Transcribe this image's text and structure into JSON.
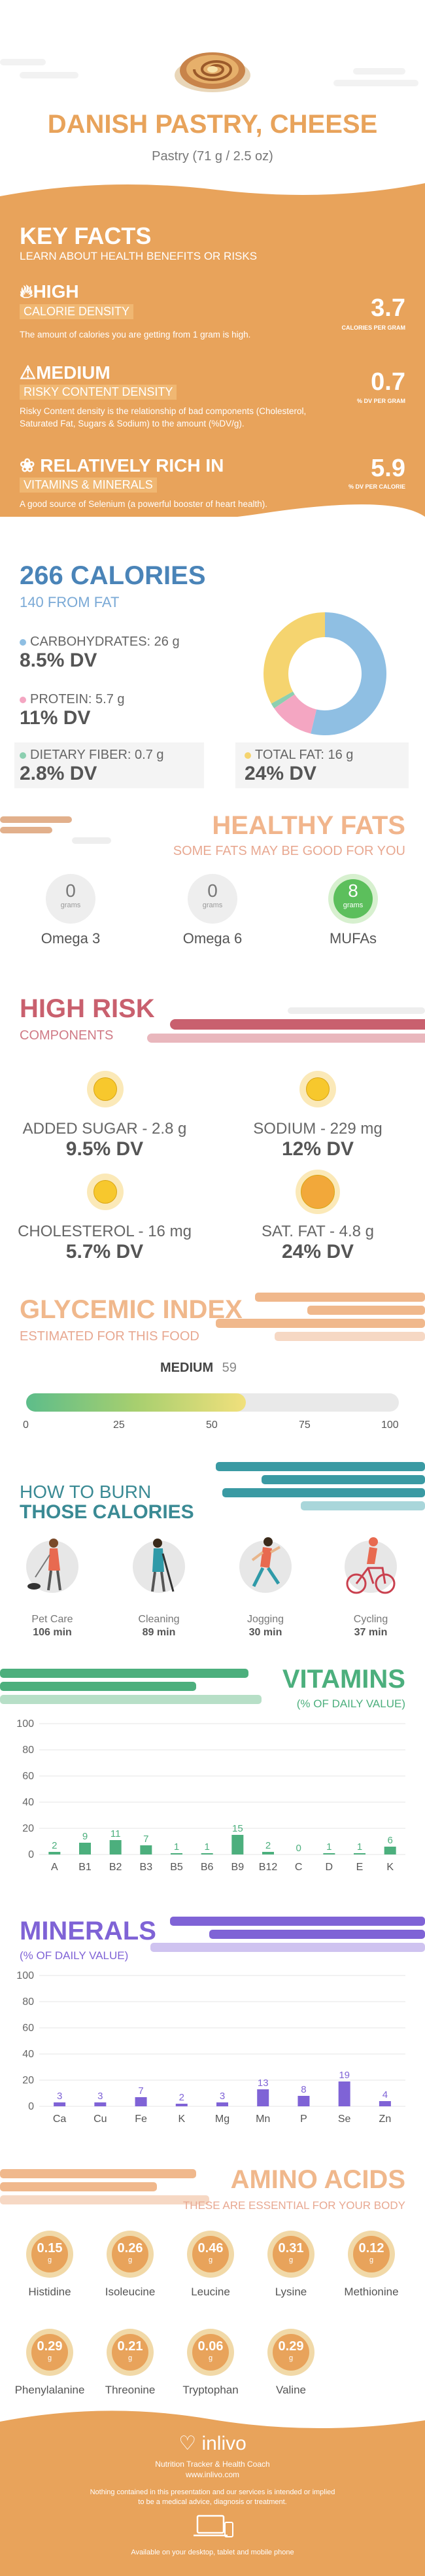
{
  "header": {
    "title": "DANISH PASTRY, CHEESE",
    "serving": "Pastry (71 g / 2.5 oz)"
  },
  "key_facts": {
    "title": "KEY FACTS",
    "subtitle": "LEARN ABOUT HEALTH BENEFITS OR RISKS",
    "items": [
      {
        "level": "HIGH",
        "label": "CALORIE DENSITY",
        "desc": "The amount of calories you are getting from 1 gram is high.",
        "value": "3.7",
        "unit": "CALORIES PER GRAM"
      },
      {
        "level": "MEDIUM",
        "label": "RISKY CONTENT DENSITY",
        "desc": "Risky Content density is the relationship of bad components (Cholesterol, Saturated Fat, Sugars & Sodium) to the amount (%DV/g).",
        "value": "0.7",
        "unit": "% DV PER GRAM"
      },
      {
        "level": "RELATIVELY RICH IN",
        "label": "VITAMINS & MINERALS",
        "desc": "A good source of Selenium (a powerful booster of heart health).",
        "value": "5.9",
        "unit": "% DV PER CALORIE"
      }
    ]
  },
  "calories": {
    "title": "266 CALORIES",
    "subtitle": "140 FROM FAT",
    "carbs": {
      "label": "CARBOHYDRATES: 26 g",
      "dv": "8.5% DV",
      "color": "#8fbfe3"
    },
    "protein": {
      "label": "PROTEIN: 5.7 g",
      "dv": "11% DV",
      "color": "#f4a6c2"
    },
    "fiber": {
      "label": "DIETARY FIBER: 0.7 g",
      "dv": "2.8% DV",
      "color": "#8ccfb0"
    },
    "fat": {
      "label": "TOTAL FAT: 16 g",
      "dv": "24% DV",
      "color": "#f5d46f"
    },
    "donut": [
      {
        "name": "Carbohydrates",
        "value": 26,
        "color": "#8fbfe3"
      },
      {
        "name": "Protein",
        "value": 5.7,
        "color": "#f4a6c2"
      },
      {
        "name": "Dietary Fiber",
        "value": 0.7,
        "color": "#8ccfb0"
      },
      {
        "name": "Total Fat",
        "value": 16,
        "color": "#f5d46f"
      }
    ]
  },
  "healthy_fats": {
    "title": "HEALTHY FATS",
    "subtitle": "SOME FATS MAY BE GOOD FOR YOU",
    "grams_label": "grams",
    "items": [
      {
        "name": "Omega 3",
        "value": "0"
      },
      {
        "name": "Omega 6",
        "value": "0"
      },
      {
        "name": "MUFAs",
        "value": "8"
      }
    ]
  },
  "high_risk": {
    "title": "HIGH RISK",
    "subtitle": "COMPONENTS",
    "items": [
      {
        "name": "ADDED SUGAR - 2.8 g",
        "dv": "9.5% DV"
      },
      {
        "name": "SODIUM - 229 mg",
        "dv": "12% DV"
      },
      {
        "name": "CHOLESTEROL - 16 mg",
        "dv": "5.7% DV"
      },
      {
        "name": "SAT. FAT - 4.8 g",
        "dv": "24% DV"
      }
    ]
  },
  "glycemic": {
    "title": "GLYCEMIC INDEX",
    "subtitle": "ESTIMATED FOR THIS FOOD",
    "level": "MEDIUM",
    "value": 59,
    "value_text": "59",
    "ticks": [
      "0",
      "25",
      "50",
      "75",
      "100"
    ]
  },
  "burn": {
    "title1": "HOW TO BURN",
    "title2": "THOSE CALORIES",
    "items": [
      {
        "name": "Pet Care",
        "minutes": "106 min"
      },
      {
        "name": "Cleaning",
        "minutes": "89 min"
      },
      {
        "name": "Jogging",
        "minutes": "30 min"
      },
      {
        "name": "Cycling",
        "minutes": "37 min"
      }
    ]
  },
  "vitamins": {
    "title": "VITAMINS",
    "subtitle": "(% OF DAILY VALUE)",
    "color": "#4caf7d",
    "chart_data": {
      "type": "bar",
      "categories": [
        "A",
        "B1",
        "B2",
        "B3",
        "B5",
        "B6",
        "B9",
        "B12",
        "C",
        "D",
        "E",
        "K"
      ],
      "values": [
        2,
        9,
        11,
        7,
        1,
        1,
        15,
        2,
        0,
        1,
        1,
        6
      ],
      "ylim": [
        0,
        100
      ],
      "yticks": [
        0,
        20,
        40,
        60,
        80,
        100
      ]
    }
  },
  "minerals": {
    "title": "MINERALS",
    "subtitle": "(% OF DAILY VALUE)",
    "color": "#7f63d6",
    "chart_data": {
      "type": "bar",
      "categories": [
        "Ca",
        "Cu",
        "Fe",
        "K",
        "Mg",
        "Mn",
        "P",
        "Se",
        "Zn"
      ],
      "values": [
        3,
        3,
        7,
        2,
        3,
        13,
        8,
        19,
        4
      ],
      "ylim": [
        0,
        100
      ],
      "yticks": [
        0,
        20,
        40,
        60,
        80,
        100
      ]
    }
  },
  "amino": {
    "title": "AMINO ACIDS",
    "subtitle": "THESE ARE ESSENTIAL FOR YOUR BODY",
    "unit": "g",
    "items": [
      {
        "name": "Histidine",
        "value": "0.15"
      },
      {
        "name": "Isoleucine",
        "value": "0.26"
      },
      {
        "name": "Leucine",
        "value": "0.46"
      },
      {
        "name": "Lysine",
        "value": "0.31"
      },
      {
        "name": "Methionine",
        "value": "0.12"
      },
      {
        "name": "Phenylalanine",
        "value": "0.29"
      },
      {
        "name": "Threonine",
        "value": "0.21"
      },
      {
        "name": "Tryptophan",
        "value": "0.06"
      },
      {
        "name": "Valine",
        "value": "0.29"
      }
    ]
  },
  "footer": {
    "brand": "inlivo",
    "tagline": "Nutrition Tracker & Health Coach",
    "url": "www.inlivo.com",
    "disclaimer1": "Nothing contained in this presentation and our services is intended or implied",
    "disclaimer2": "to be a medical advice, diagnosis or treatment.",
    "available": "Available on your desktop, tablet and mobile phone"
  }
}
